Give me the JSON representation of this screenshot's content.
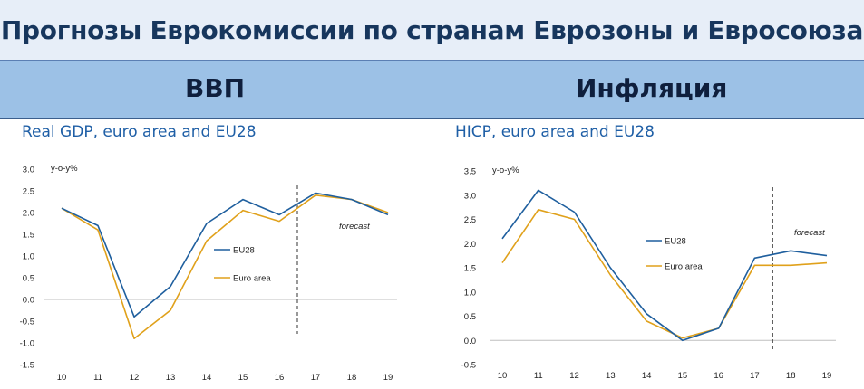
{
  "header": {
    "title": "Прогнозы Еврокомиссии по странам Еврозоны и Евросоюза",
    "left_label": "ВВП",
    "right_label": "Инфляция"
  },
  "colors": {
    "eu28": "#1f5f9e",
    "euro_area": "#e0a11b",
    "title_text": "#17365d",
    "header_band": "#9cc1e6"
  },
  "chart_data": [
    {
      "type": "line",
      "title": "Real GDP, euro area and EU28",
      "ylabel": "y-o-y%",
      "xlabel": "",
      "categories": [
        "10",
        "11",
        "12",
        "13",
        "14",
        "15",
        "16",
        "17",
        "18",
        "19"
      ],
      "yticks": [
        "3.0",
        "2.5",
        "2.0",
        "1.5",
        "1.0",
        "0.5",
        "0.0",
        "-0.5",
        "-1.0",
        "-1.5"
      ],
      "ylim": [
        -1.5,
        3.0
      ],
      "grid": false,
      "legend": "center-right",
      "annotation": "forecast",
      "forecast_marker_after": "16",
      "series": [
        {
          "name": "EU28",
          "values": [
            2.1,
            1.7,
            -0.4,
            0.3,
            1.75,
            2.3,
            1.95,
            2.45,
            2.3,
            1.95
          ]
        },
        {
          "name": "Euro area",
          "values": [
            2.1,
            1.6,
            -0.9,
            -0.25,
            1.35,
            2.05,
            1.8,
            2.4,
            2.3,
            2.0
          ]
        }
      ]
    },
    {
      "type": "line",
      "title": "HICP, euro area and EU28",
      "ylabel": "y-o-y%",
      "xlabel": "",
      "categories": [
        "10",
        "11",
        "12",
        "13",
        "14",
        "15",
        "16",
        "17",
        "18",
        "19"
      ],
      "yticks": [
        "3.5",
        "3.0",
        "2.5",
        "2.0",
        "1.5",
        "1.0",
        "0.5",
        "0.0",
        "-0.5"
      ],
      "ylim": [
        -0.5,
        3.5
      ],
      "grid": false,
      "legend": "center-right",
      "annotation": "forecast",
      "forecast_marker_after": "17",
      "series": [
        {
          "name": "EU28",
          "values": [
            2.1,
            3.1,
            2.65,
            1.5,
            0.55,
            0.0,
            0.25,
            1.7,
            1.85,
            1.75
          ]
        },
        {
          "name": "Euro area",
          "values": [
            1.6,
            2.7,
            2.5,
            1.35,
            0.4,
            0.05,
            0.25,
            1.55,
            1.55,
            1.6
          ]
        }
      ]
    }
  ]
}
